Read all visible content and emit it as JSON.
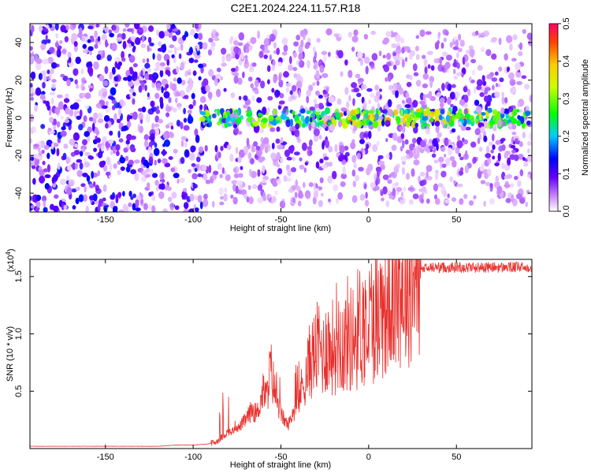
{
  "title": "C2E1.2024.224.11.57.R18",
  "colors": {
    "line": "#e8302c",
    "frame": "#000000"
  },
  "chart_data": [
    {
      "type": "heatmap",
      "xlabel": "Height of straight line (km)",
      "ylabel": "Frequency (Hz)",
      "xlim": [
        -193,
        93
      ],
      "ylim": [
        -50,
        50
      ],
      "xticks": [
        -150,
        -100,
        -50,
        0,
        50
      ],
      "yticks": [
        -40,
        -20,
        0,
        20,
        40
      ],
      "colorbar": {
        "label": "Normalized spectral amplitude",
        "range": [
          0.0,
          0.5
        ],
        "ticks": [
          "0.0",
          "0.1",
          "0.2",
          "0.3",
          "0.4",
          "0.5"
        ]
      },
      "features": [
        {
          "x_range": [
            -193,
            -95
          ],
          "freq_range": [
            -50,
            50
          ],
          "amplitude": 0.05
        },
        {
          "x_range": [
            -95,
            93
          ],
          "freq_range": [
            -45,
            45
          ],
          "amplitude": 0.07
        },
        {
          "x_range": [
            -95,
            93
          ],
          "freq_range": [
            -5,
            5
          ],
          "amplitude": 0.25
        },
        {
          "x_range": [
            -20,
            60
          ],
          "freq_range": [
            -2,
            2
          ],
          "amplitude": 0.4
        }
      ]
    },
    {
      "type": "line",
      "xlabel": "Height of straight line (km)",
      "ylabel": "SNR (10 * v/v)",
      "scale_note": "(x10",
      "scale_exp": "4",
      "scale_close": ")",
      "xlim": [
        -193,
        93
      ],
      "ylim": [
        0,
        1.65
      ],
      "xticks": [
        -150,
        -100,
        -50,
        0,
        50
      ],
      "yticks": [
        "0.5",
        "1.0",
        "1.5"
      ],
      "ytick_values": [
        0.5,
        1.0,
        1.5
      ],
      "series": [
        {
          "x": [
            -193,
            -180,
            -160,
            -140,
            -120,
            -110,
            -100,
            -92,
            -88,
            -85,
            -82,
            -80,
            -78,
            -76,
            -74,
            -72,
            -70,
            -68,
            -66,
            -64,
            -62,
            -60,
            -58,
            -56,
            -54,
            -52,
            -50,
            -48,
            -46,
            -44,
            -42,
            -40,
            -38,
            -36,
            -34,
            -32,
            -30,
            -28,
            -26,
            -24,
            -22,
            -20,
            -18,
            -16,
            -14,
            -12,
            -10,
            -8,
            -6,
            -4,
            -2,
            0,
            2,
            4,
            6,
            8,
            10,
            12,
            14,
            16,
            18,
            20,
            22,
            24,
            26,
            28,
            30,
            32,
            34,
            36,
            38,
            40,
            44,
            50,
            60,
            70,
            80,
            93
          ],
          "y": [
            0.02,
            0.02,
            0.02,
            0.02,
            0.02,
            0.03,
            0.03,
            0.04,
            0.05,
            0.08,
            0.12,
            0.15,
            0.14,
            0.2,
            0.18,
            0.22,
            0.25,
            0.3,
            0.35,
            0.28,
            0.4,
            0.5,
            0.45,
            0.7,
            0.55,
            0.4,
            0.3,
            0.25,
            0.2,
            0.28,
            0.35,
            0.4,
            0.55,
            0.6,
            0.75,
            0.8,
            0.85,
            0.9,
            0.8,
            0.95,
            0.85,
            0.9,
            1.0,
            0.95,
            0.9,
            1.0,
            0.95,
            1.0,
            1.05,
            1.1,
            1.05,
            1.1,
            1.15,
            1.2,
            1.18,
            1.25,
            1.3,
            1.32,
            1.35,
            1.38,
            1.42,
            1.45,
            1.48,
            1.5,
            1.53,
            1.55,
            1.56,
            1.57,
            1.57,
            1.58,
            1.58,
            1.58,
            1.58,
            1.58,
            1.58,
            1.58,
            1.58,
            1.58
          ]
        }
      ]
    }
  ]
}
